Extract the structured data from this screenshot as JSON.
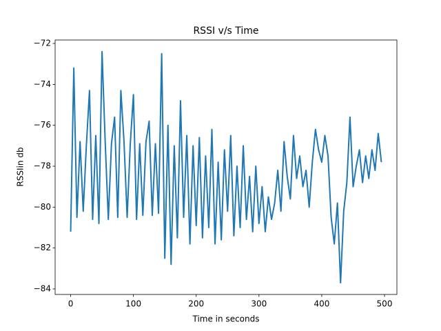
{
  "chart_data": {
    "type": "line",
    "title": "RSSI v/s Time",
    "x_label": "Time in seconds",
    "y_label": "RSSIin db",
    "color": "#1f77b4",
    "grid": false,
    "x": [
      0,
      5,
      10,
      15,
      20,
      25,
      30,
      35,
      40,
      45,
      50,
      55,
      60,
      65,
      70,
      75,
      80,
      85,
      90,
      95,
      100,
      105,
      110,
      115,
      120,
      125,
      130,
      135,
      140,
      145,
      150,
      155,
      160,
      165,
      170,
      175,
      180,
      185,
      190,
      195,
      200,
      205,
      210,
      215,
      220,
      225,
      230,
      235,
      240,
      245,
      250,
      255,
      260,
      265,
      270,
      275,
      280,
      285,
      290,
      295,
      300,
      305,
      310,
      315,
      320,
      325,
      330,
      335,
      340,
      345,
      350,
      355,
      360,
      365,
      370,
      375,
      380,
      385,
      390,
      395,
      400,
      405,
      410,
      415,
      420,
      425,
      430,
      435,
      440,
      445,
      450,
      455,
      460,
      465,
      470,
      475,
      480,
      485,
      490,
      495
    ],
    "values": [
      -81.2,
      -73.2,
      -80.5,
      -76.8,
      -80.2,
      -77,
      -74.3,
      -80.6,
      -76.5,
      -80.8,
      -72.4,
      -76.8,
      -80.6,
      -76.9,
      -75.6,
      -80.5,
      -74.3,
      -76.8,
      -80.5,
      -76.9,
      -74.5,
      -80.6,
      -76.9,
      -80.4,
      -76.8,
      -75.8,
      -80.4,
      -76.9,
      -80.3,
      -72.5,
      -82.5,
      -76,
      -82.8,
      -77,
      -81.5,
      -74.8,
      -80.5,
      -76.5,
      -81.8,
      -77,
      -80.9,
      -76.6,
      -81.5,
      -77.5,
      -81,
      -76.2,
      -81.8,
      -77.8,
      -81.6,
      -77.2,
      -80.2,
      -76.5,
      -81.4,
      -78,
      -81,
      -77,
      -80.6,
      -78.5,
      -81.2,
      -78,
      -80.8,
      -79,
      -81.2,
      -79.5,
      -80.6,
      -79.8,
      -78.2,
      -80.2,
      -76.8,
      -78.5,
      -79.6,
      -76.5,
      -78.6,
      -77.5,
      -79,
      -78.2,
      -80,
      -77.8,
      -76.2,
      -77.2,
      -77.8,
      -76.5,
      -77.5,
      -80.5,
      -81.8,
      -79.8,
      -83.7,
      -80.2,
      -78.8,
      -75.6,
      -79,
      -78,
      -77.2,
      -78.8,
      -77.5,
      -78.6,
      -77.2,
      -78.2,
      -76.4,
      -77.8
    ],
    "xlim": [
      -24.75,
      519.75
    ],
    "xticks": [
      0,
      100,
      200,
      300,
      400,
      500
    ],
    "ylim": [
      -84.27,
      -71.83
    ],
    "yticks": [
      {
        "value": -84,
        "label": "−84"
      },
      {
        "value": -82,
        "label": "−82"
      },
      {
        "value": -80,
        "label": "−80"
      },
      {
        "value": -78,
        "label": "−78"
      },
      {
        "value": -76,
        "label": "−76"
      },
      {
        "value": -74,
        "label": "−74"
      },
      {
        "value": -72,
        "label": "−72"
      }
    ]
  }
}
